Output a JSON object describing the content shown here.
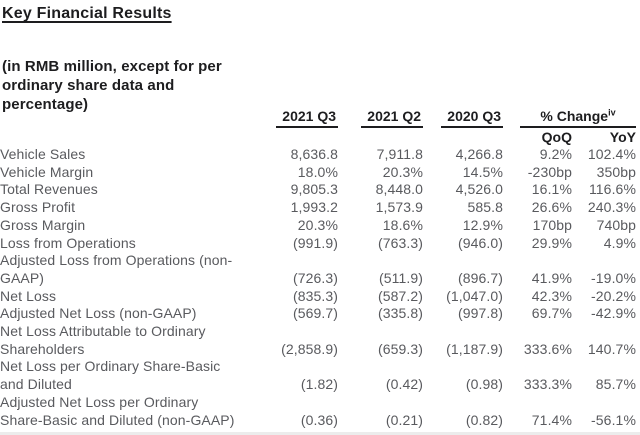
{
  "page": {
    "title": "Key Financial Results",
    "subtitle": "(in RMB million, except for per\nordinary share data and\npercentage)"
  },
  "table": {
    "column_headers": [
      "2021 Q3",
      "2021 Q2",
      "2020 Q3"
    ],
    "change_header": {
      "label": "% Change",
      "footnote_ref": "iv",
      "subcolumns": [
        "QoQ",
        "YoY"
      ]
    },
    "rows": [
      {
        "label": "Vehicle Sales",
        "values": [
          "8,636.8",
          "7,911.8",
          "4,266.8",
          "9.2%",
          "102.4%"
        ]
      },
      {
        "label": "Vehicle Margin",
        "values": [
          "18.0%",
          "20.3%",
          "14.5%",
          "-230bp",
          "350bp"
        ]
      },
      {
        "label": "Total Revenues",
        "values": [
          "9,805.3",
          "8,448.0",
          "4,526.0",
          "16.1%",
          "116.6%"
        ]
      },
      {
        "label": "Gross Profit",
        "values": [
          "1,993.2",
          "1,573.9",
          "585.8",
          "26.6%",
          "240.3%"
        ]
      },
      {
        "label": "Gross Margin",
        "values": [
          "20.3%",
          "18.6%",
          "12.9%",
          "170bp",
          "740bp"
        ]
      },
      {
        "label": "Loss from Operations",
        "values": [
          "(991.9)",
          "(763.3)",
          "(946.0)",
          "29.9%",
          "4.9%"
        ]
      },
      {
        "label": "Adjusted Loss from Operations (non-\nGAAP)",
        "values": [
          "(726.3)",
          "(511.9)",
          "(896.7)",
          "41.9%",
          "-19.0%"
        ]
      },
      {
        "label": "Net Loss",
        "values": [
          "(835.3)",
          "(587.2)",
          "(1,047.0)",
          "42.3%",
          "-20.2%"
        ]
      },
      {
        "label": "Adjusted Net Loss (non-GAAP)",
        "values": [
          "(569.7)",
          "(335.8)",
          "(997.8)",
          "69.7%",
          "-42.9%"
        ]
      },
      {
        "label": "Net Loss Attributable to Ordinary\nShareholders",
        "values": [
          "(2,858.9)",
          "(659.3)",
          "(1,187.9)",
          "333.6%",
          "140.7%"
        ]
      },
      {
        "label": "Net Loss per Ordinary Share-Basic\nand Diluted",
        "values": [
          "(1.82)",
          "(0.42)",
          "(0.98)",
          "333.3%",
          "85.7%"
        ]
      },
      {
        "label": "Adjusted Net Loss per Ordinary\nShare-Basic and Diluted (non-GAAP)",
        "values": [
          "(0.36)",
          "(0.21)",
          "(0.82)",
          "71.4%",
          "-56.1%"
        ]
      }
    ]
  },
  "colors": {
    "heading_text": "#1d1d1f",
    "body_text": "#595a5e",
    "rule": "#1d1d1f"
  }
}
